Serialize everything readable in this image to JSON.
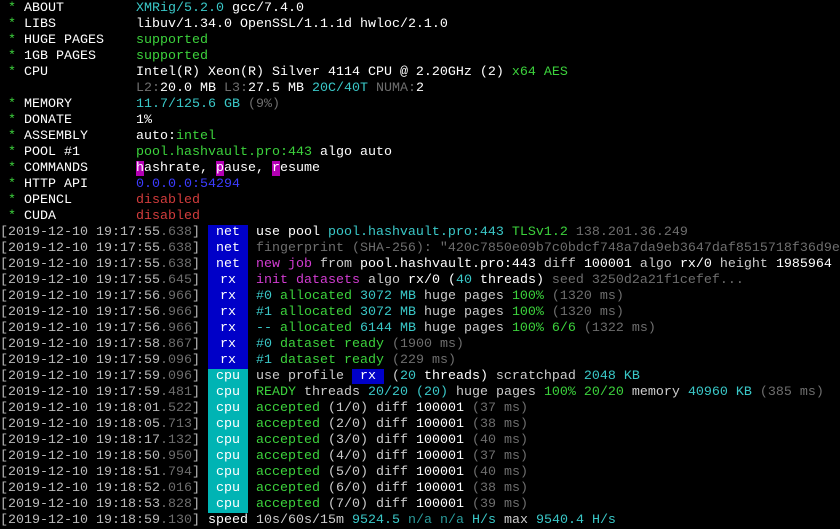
{
  "colors": {
    "w": "#ffffff",
    "d": "#cccccc",
    "g": "#6e6e6e",
    "c": "#3ac8c8",
    "G": "#3cd23c",
    "m": "#d23cd2",
    "b": "#3c3cff",
    "r": "#d23c3c",
    "n": "#2a9a9a"
  },
  "tag_colors": {
    "net": "#0000c8",
    "rx": "#0000c8",
    "cpu": "#00b4b4"
  },
  "command_key_bg": "#b400b4",
  "header": [
    {
      "label": "ABOUT",
      "segs": [
        {
          "t": "XMRig/5.2.0",
          "c": "c"
        },
        {
          "t": " gcc/7.4.0",
          "c": "w"
        }
      ]
    },
    {
      "label": "LIBS",
      "segs": [
        {
          "t": "libuv/1.34.0 OpenSSL/1.1.1d hwloc/2.1.0",
          "c": "w"
        }
      ]
    },
    {
      "label": "HUGE PAGES",
      "segs": [
        {
          "t": "supported",
          "c": "G"
        }
      ]
    },
    {
      "label": "1GB PAGES",
      "segs": [
        {
          "t": "supported",
          "c": "G"
        }
      ]
    },
    {
      "label": "CPU",
      "segs": [
        {
          "t": "Intel(R) Xeon(R) Silver 4114 CPU @ 2.20GHz (2)",
          "c": "w"
        },
        {
          "t": " x64 AES",
          "c": "G"
        }
      ]
    },
    {
      "label": "",
      "segs": [
        {
          "t": "L2:",
          "c": "g"
        },
        {
          "t": "20.0 MB",
          "c": "w"
        },
        {
          "t": " L3:",
          "c": "g"
        },
        {
          "t": "27.5 MB",
          "c": "w"
        },
        {
          "t": " 20C/40T",
          "c": "c"
        },
        {
          "t": " NUMA:",
          "c": "g"
        },
        {
          "t": "2",
          "c": "w"
        }
      ]
    },
    {
      "label": "MEMORY",
      "segs": [
        {
          "t": "11.7/125.6 GB",
          "c": "c"
        },
        {
          "t": " (9%)",
          "c": "g"
        }
      ]
    },
    {
      "label": "DONATE",
      "segs": [
        {
          "t": "1%",
          "c": "w"
        }
      ]
    },
    {
      "label": "ASSEMBLY",
      "segs": [
        {
          "t": "auto:",
          "c": "w"
        },
        {
          "t": "intel",
          "c": "G"
        }
      ]
    },
    {
      "label": "POOL #1",
      "segs": [
        {
          "t": "pool.hashvault.pro:443",
          "c": "G"
        },
        {
          "t": " algo auto",
          "c": "w"
        }
      ]
    },
    {
      "label": "COMMANDS",
      "segs": [
        {
          "t": "h",
          "c": "w",
          "key": true
        },
        {
          "t": "ashrate, ",
          "c": "w"
        },
        {
          "t": "p",
          "c": "w",
          "key": true
        },
        {
          "t": "ause, ",
          "c": "w"
        },
        {
          "t": "r",
          "c": "w",
          "key": true
        },
        {
          "t": "esume",
          "c": "w"
        }
      ]
    },
    {
      "label": "HTTP API",
      "segs": [
        {
          "t": "0.0.0.0:54294",
          "c": "b"
        }
      ]
    },
    {
      "label": "OPENCL",
      "segs": [
        {
          "t": "disabled",
          "c": "r"
        }
      ]
    },
    {
      "label": "CUDA",
      "segs": [
        {
          "t": "disabled",
          "c": "r"
        }
      ]
    }
  ],
  "log": [
    {
      "ts": "2019-12-10 19:17:55",
      "ms": ".638",
      "tag": "net",
      "segs": [
        {
          "t": "use pool ",
          "c": "w"
        },
        {
          "t": "pool.hashvault.pro:443",
          "c": "c"
        },
        {
          "t": " TLSv1.2",
          "c": "G"
        },
        {
          "t": " 138.201.36.249",
          "c": "g"
        }
      ]
    },
    {
      "ts": "2019-12-10 19:17:55",
      "ms": ".638",
      "tag": "net",
      "segs": [
        {
          "t": "fingerprint (SHA-256): \"420c7850e09b7c0bdcf748a7da9eb3647daf8515718f36d9e",
          "c": "g"
        }
      ]
    },
    {
      "ts": "2019-12-10 19:17:55",
      "ms": ".638",
      "tag": "net",
      "segs": [
        {
          "t": "new job",
          "c": "m"
        },
        {
          "t": " from ",
          "c": "d"
        },
        {
          "t": "pool.hashvault.pro:443",
          "c": "w"
        },
        {
          "t": " diff ",
          "c": "d"
        },
        {
          "t": "100001",
          "c": "w"
        },
        {
          "t": " algo ",
          "c": "d"
        },
        {
          "t": "rx/0",
          "c": "w"
        },
        {
          "t": " height ",
          "c": "d"
        },
        {
          "t": "1985964",
          "c": "w"
        }
      ]
    },
    {
      "ts": "2019-12-10 19:17:55",
      "ms": ".645",
      "tag": "rx",
      "segs": [
        {
          "t": "init datasets",
          "c": "m"
        },
        {
          "t": " algo ",
          "c": "d"
        },
        {
          "t": "rx/0",
          "c": "w"
        },
        {
          "t": " (",
          "c": "w"
        },
        {
          "t": "40",
          "c": "c"
        },
        {
          "t": " threads)",
          "c": "w"
        },
        {
          "t": " seed 3250d2a21f1cefef...",
          "c": "g"
        }
      ]
    },
    {
      "ts": "2019-12-10 19:17:56",
      "ms": ".966",
      "tag": "rx",
      "segs": [
        {
          "t": "#0",
          "c": "c"
        },
        {
          "t": " allocated ",
          "c": "G"
        },
        {
          "t": "3072 MB",
          "c": "c"
        },
        {
          "t": " huge pages ",
          "c": "d"
        },
        {
          "t": "100%",
          "c": "G"
        },
        {
          "t": " (1320 ms)",
          "c": "g"
        }
      ]
    },
    {
      "ts": "2019-12-10 19:17:56",
      "ms": ".966",
      "tag": "rx",
      "segs": [
        {
          "t": "#1",
          "c": "c"
        },
        {
          "t": " allocated ",
          "c": "G"
        },
        {
          "t": "3072 MB",
          "c": "c"
        },
        {
          "t": " huge pages ",
          "c": "d"
        },
        {
          "t": "100%",
          "c": "G"
        },
        {
          "t": " (1320 ms)",
          "c": "g"
        }
      ]
    },
    {
      "ts": "2019-12-10 19:17:56",
      "ms": ".966",
      "tag": "rx",
      "segs": [
        {
          "t": "--",
          "c": "c"
        },
        {
          "t": " allocated ",
          "c": "G"
        },
        {
          "t": "6144 MB",
          "c": "c"
        },
        {
          "t": " huge pages ",
          "c": "d"
        },
        {
          "t": "100%",
          "c": "G"
        },
        {
          "t": " 6/6",
          "c": "G"
        },
        {
          "t": " (1322 ms)",
          "c": "g"
        }
      ]
    },
    {
      "ts": "2019-12-10 19:17:58",
      "ms": ".867",
      "tag": "rx",
      "segs": [
        {
          "t": "#0",
          "c": "c"
        },
        {
          "t": " dataset ready",
          "c": "G"
        },
        {
          "t": " (1900 ms)",
          "c": "g"
        }
      ]
    },
    {
      "ts": "2019-12-10 19:17:59",
      "ms": ".096",
      "tag": "rx",
      "segs": [
        {
          "t": "#1",
          "c": "c"
        },
        {
          "t": " dataset ready",
          "c": "G"
        },
        {
          "t": " (229 ms)",
          "c": "g"
        }
      ]
    },
    {
      "ts": "2019-12-10 19:17:59",
      "ms": ".096",
      "tag": "cpu",
      "segs": [
        {
          "t": "use profile ",
          "c": "d"
        },
        {
          "t": " rx ",
          "c": "w",
          "bg": "#0000c8"
        },
        {
          "t": " (",
          "c": "d"
        },
        {
          "t": "20",
          "c": "c"
        },
        {
          "t": " threads)",
          "c": "w"
        },
        {
          "t": " scratchpad ",
          "c": "d"
        },
        {
          "t": "2048 KB",
          "c": "c"
        }
      ]
    },
    {
      "ts": "2019-12-10 19:17:59",
      "ms": ".481",
      "tag": "cpu",
      "segs": [
        {
          "t": "READY",
          "c": "G"
        },
        {
          "t": " threads ",
          "c": "d"
        },
        {
          "t": "20/20",
          "c": "c"
        },
        {
          "t": " (20)",
          "c": "c"
        },
        {
          "t": " huge pages ",
          "c": "d"
        },
        {
          "t": "100%",
          "c": "G"
        },
        {
          "t": " 20/20",
          "c": "G"
        },
        {
          "t": " memory ",
          "c": "d"
        },
        {
          "t": "40960 KB",
          "c": "c"
        },
        {
          "t": " (385 ms)",
          "c": "g"
        }
      ]
    },
    {
      "ts": "2019-12-10 19:18:01",
      "ms": ".522",
      "tag": "cpu",
      "segs": [
        {
          "t": "accepted",
          "c": "G"
        },
        {
          "t": " (1/0) diff ",
          "c": "d"
        },
        {
          "t": "100001",
          "c": "w"
        },
        {
          "t": " (37 ms)",
          "c": "g"
        }
      ]
    },
    {
      "ts": "2019-12-10 19:18:05",
      "ms": ".713",
      "tag": "cpu",
      "segs": [
        {
          "t": "accepted",
          "c": "G"
        },
        {
          "t": " (2/0) diff ",
          "c": "d"
        },
        {
          "t": "100001",
          "c": "w"
        },
        {
          "t": " (38 ms)",
          "c": "g"
        }
      ]
    },
    {
      "ts": "2019-12-10 19:18:17",
      "ms": ".132",
      "tag": "cpu",
      "segs": [
        {
          "t": "accepted",
          "c": "G"
        },
        {
          "t": " (3/0) diff ",
          "c": "d"
        },
        {
          "t": "100001",
          "c": "w"
        },
        {
          "t": " (40 ms)",
          "c": "g"
        }
      ]
    },
    {
      "ts": "2019-12-10 19:18:50",
      "ms": ".950",
      "tag": "cpu",
      "segs": [
        {
          "t": "accepted",
          "c": "G"
        },
        {
          "t": " (4/0) diff ",
          "c": "d"
        },
        {
          "t": "100001",
          "c": "w"
        },
        {
          "t": " (37 ms)",
          "c": "g"
        }
      ]
    },
    {
      "ts": "2019-12-10 19:18:51",
      "ms": ".794",
      "tag": "cpu",
      "segs": [
        {
          "t": "accepted",
          "c": "G"
        },
        {
          "t": " (5/0) diff ",
          "c": "d"
        },
        {
          "t": "100001",
          "c": "w"
        },
        {
          "t": " (40 ms)",
          "c": "g"
        }
      ]
    },
    {
      "ts": "2019-12-10 19:18:52",
      "ms": ".016",
      "tag": "cpu",
      "segs": [
        {
          "t": "accepted",
          "c": "G"
        },
        {
          "t": " (6/0) diff ",
          "c": "d"
        },
        {
          "t": "100001",
          "c": "w"
        },
        {
          "t": " (38 ms)",
          "c": "g"
        }
      ]
    },
    {
      "ts": "2019-12-10 19:18:53",
      "ms": ".828",
      "tag": "cpu",
      "segs": [
        {
          "t": "accepted",
          "c": "G"
        },
        {
          "t": " (7/0) diff ",
          "c": "d"
        },
        {
          "t": "100001",
          "c": "w"
        },
        {
          "t": " (39 ms)",
          "c": "g"
        }
      ]
    },
    {
      "ts": "2019-12-10 19:18:59",
      "ms": ".130",
      "tag": "",
      "segs": [
        {
          "t": "speed",
          "c": "w"
        },
        {
          "t": " 10s/60s/15m ",
          "c": "d"
        },
        {
          "t": "9524.5",
          "c": "c"
        },
        {
          "t": " n/a n/a",
          "c": "n"
        },
        {
          "t": " H/s",
          "c": "c"
        },
        {
          "t": " max ",
          "c": "d"
        },
        {
          "t": "9540.4 H/s",
          "c": "c"
        }
      ]
    }
  ]
}
